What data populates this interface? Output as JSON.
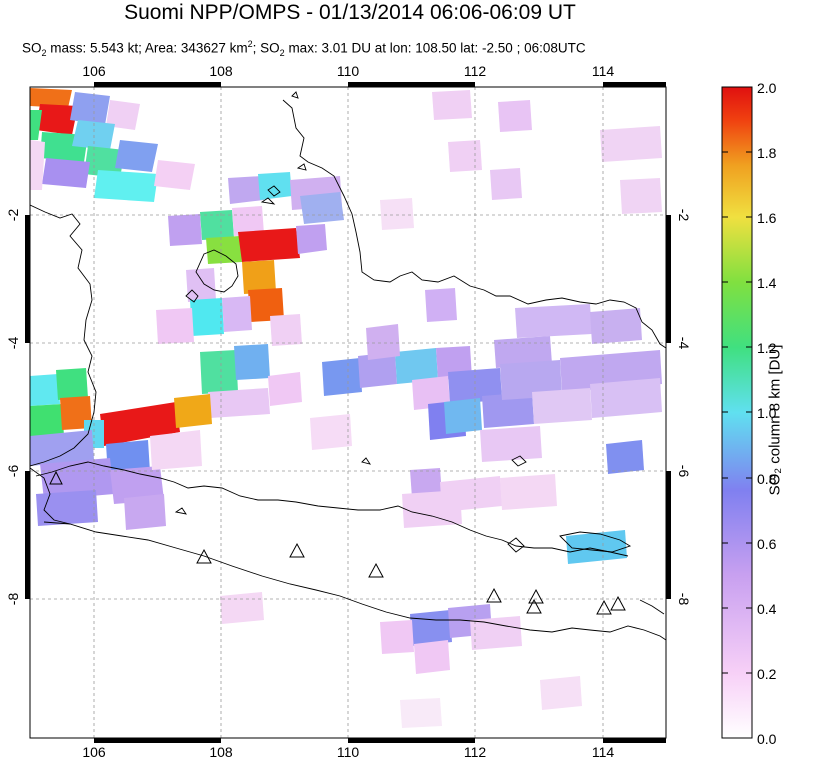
{
  "title": "Suomi NPP/OMPS - 01/13/2014 06:06-06:09 UT",
  "subtitle": {
    "mass_label": "SO",
    "mass_sub": "2",
    "mass_text": " mass: 5.543 kt; Area: 343627 km",
    "area_sup": "2",
    "max_label": "; SO",
    "max_sub": "2",
    "max_text": " max: 3.01 DU at lon: 108.50 lat: -2.50 ; 06:08UTC"
  },
  "map": {
    "lon_range": [
      105,
      115
    ],
    "lat_range": [
      -10,
      -1
    ],
    "lon_ticks": [
      "106",
      "108",
      "110",
      "112",
      "114"
    ],
    "lat_ticks": [
      "-2",
      "-4",
      "-6",
      "-8"
    ],
    "volcano_marker": "triangle-icon"
  },
  "colorbar": {
    "range": [
      0.0,
      2.0
    ],
    "tick_labels": [
      "2.0",
      "1.8",
      "1.6",
      "1.4",
      "1.2",
      "1.0",
      "0.8",
      "0.6",
      "0.4",
      "0.2",
      "0.0"
    ],
    "label": "SO₂ column 8 km [DU]",
    "colors": [
      "#ffffff",
      "#f7d0f7",
      "#c8a0f0",
      "#8080f0",
      "#60e0f0",
      "#40e080",
      "#80e040",
      "#f0e040",
      "#f0a020",
      "#f04010",
      "#e01010"
    ]
  }
}
